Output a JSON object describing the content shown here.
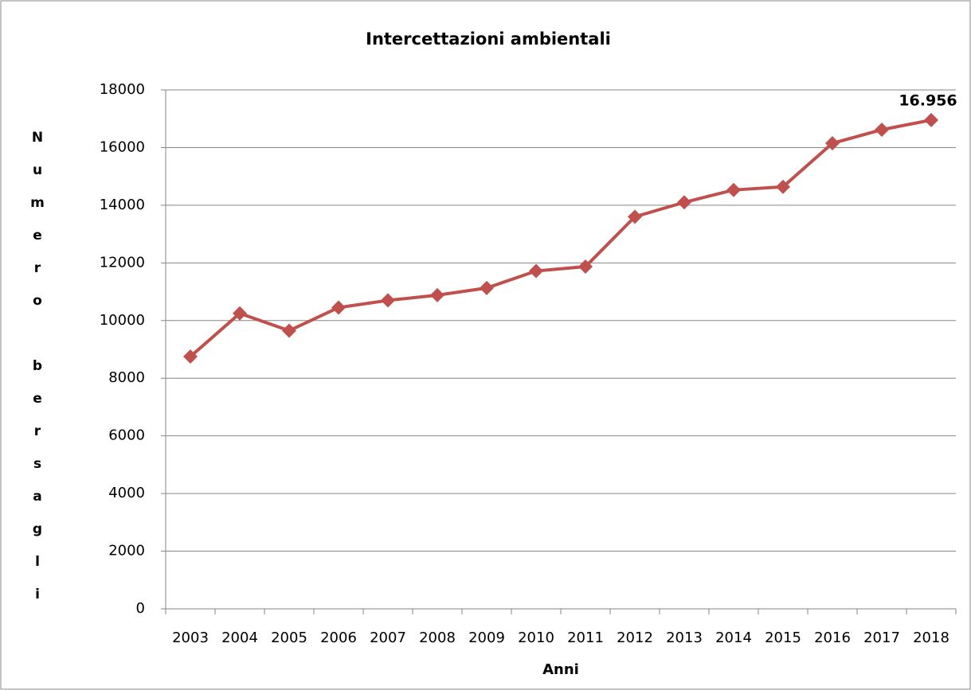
{
  "chart_data": {
    "type": "line",
    "title": "Intercettazioni ambientali",
    "x_label": "Anni",
    "y_label": "Numero bersagli",
    "categories": [
      "2003",
      "2004",
      "2005",
      "2006",
      "2007",
      "2008",
      "2009",
      "2010",
      "2011",
      "2012",
      "2013",
      "2014",
      "2015",
      "2016",
      "2017",
      "2018"
    ],
    "series": [
      {
        "name": "Intercettazioni ambientali",
        "color": "#c0504d",
        "values": [
          8750,
          10250,
          9650,
          10450,
          10700,
          10880,
          11130,
          11720,
          11870,
          13600,
          14100,
          14530,
          14640,
          16150,
          16620,
          16956
        ],
        "value_labels": [
          null,
          null,
          null,
          null,
          null,
          null,
          null,
          null,
          null,
          null,
          null,
          null,
          null,
          null,
          null,
          "16.956"
        ]
      }
    ],
    "ylim": [
      0,
      18000
    ],
    "yticks": [
      0,
      2000,
      4000,
      6000,
      8000,
      10000,
      12000,
      14000,
      16000,
      18000
    ],
    "grid": true
  }
}
